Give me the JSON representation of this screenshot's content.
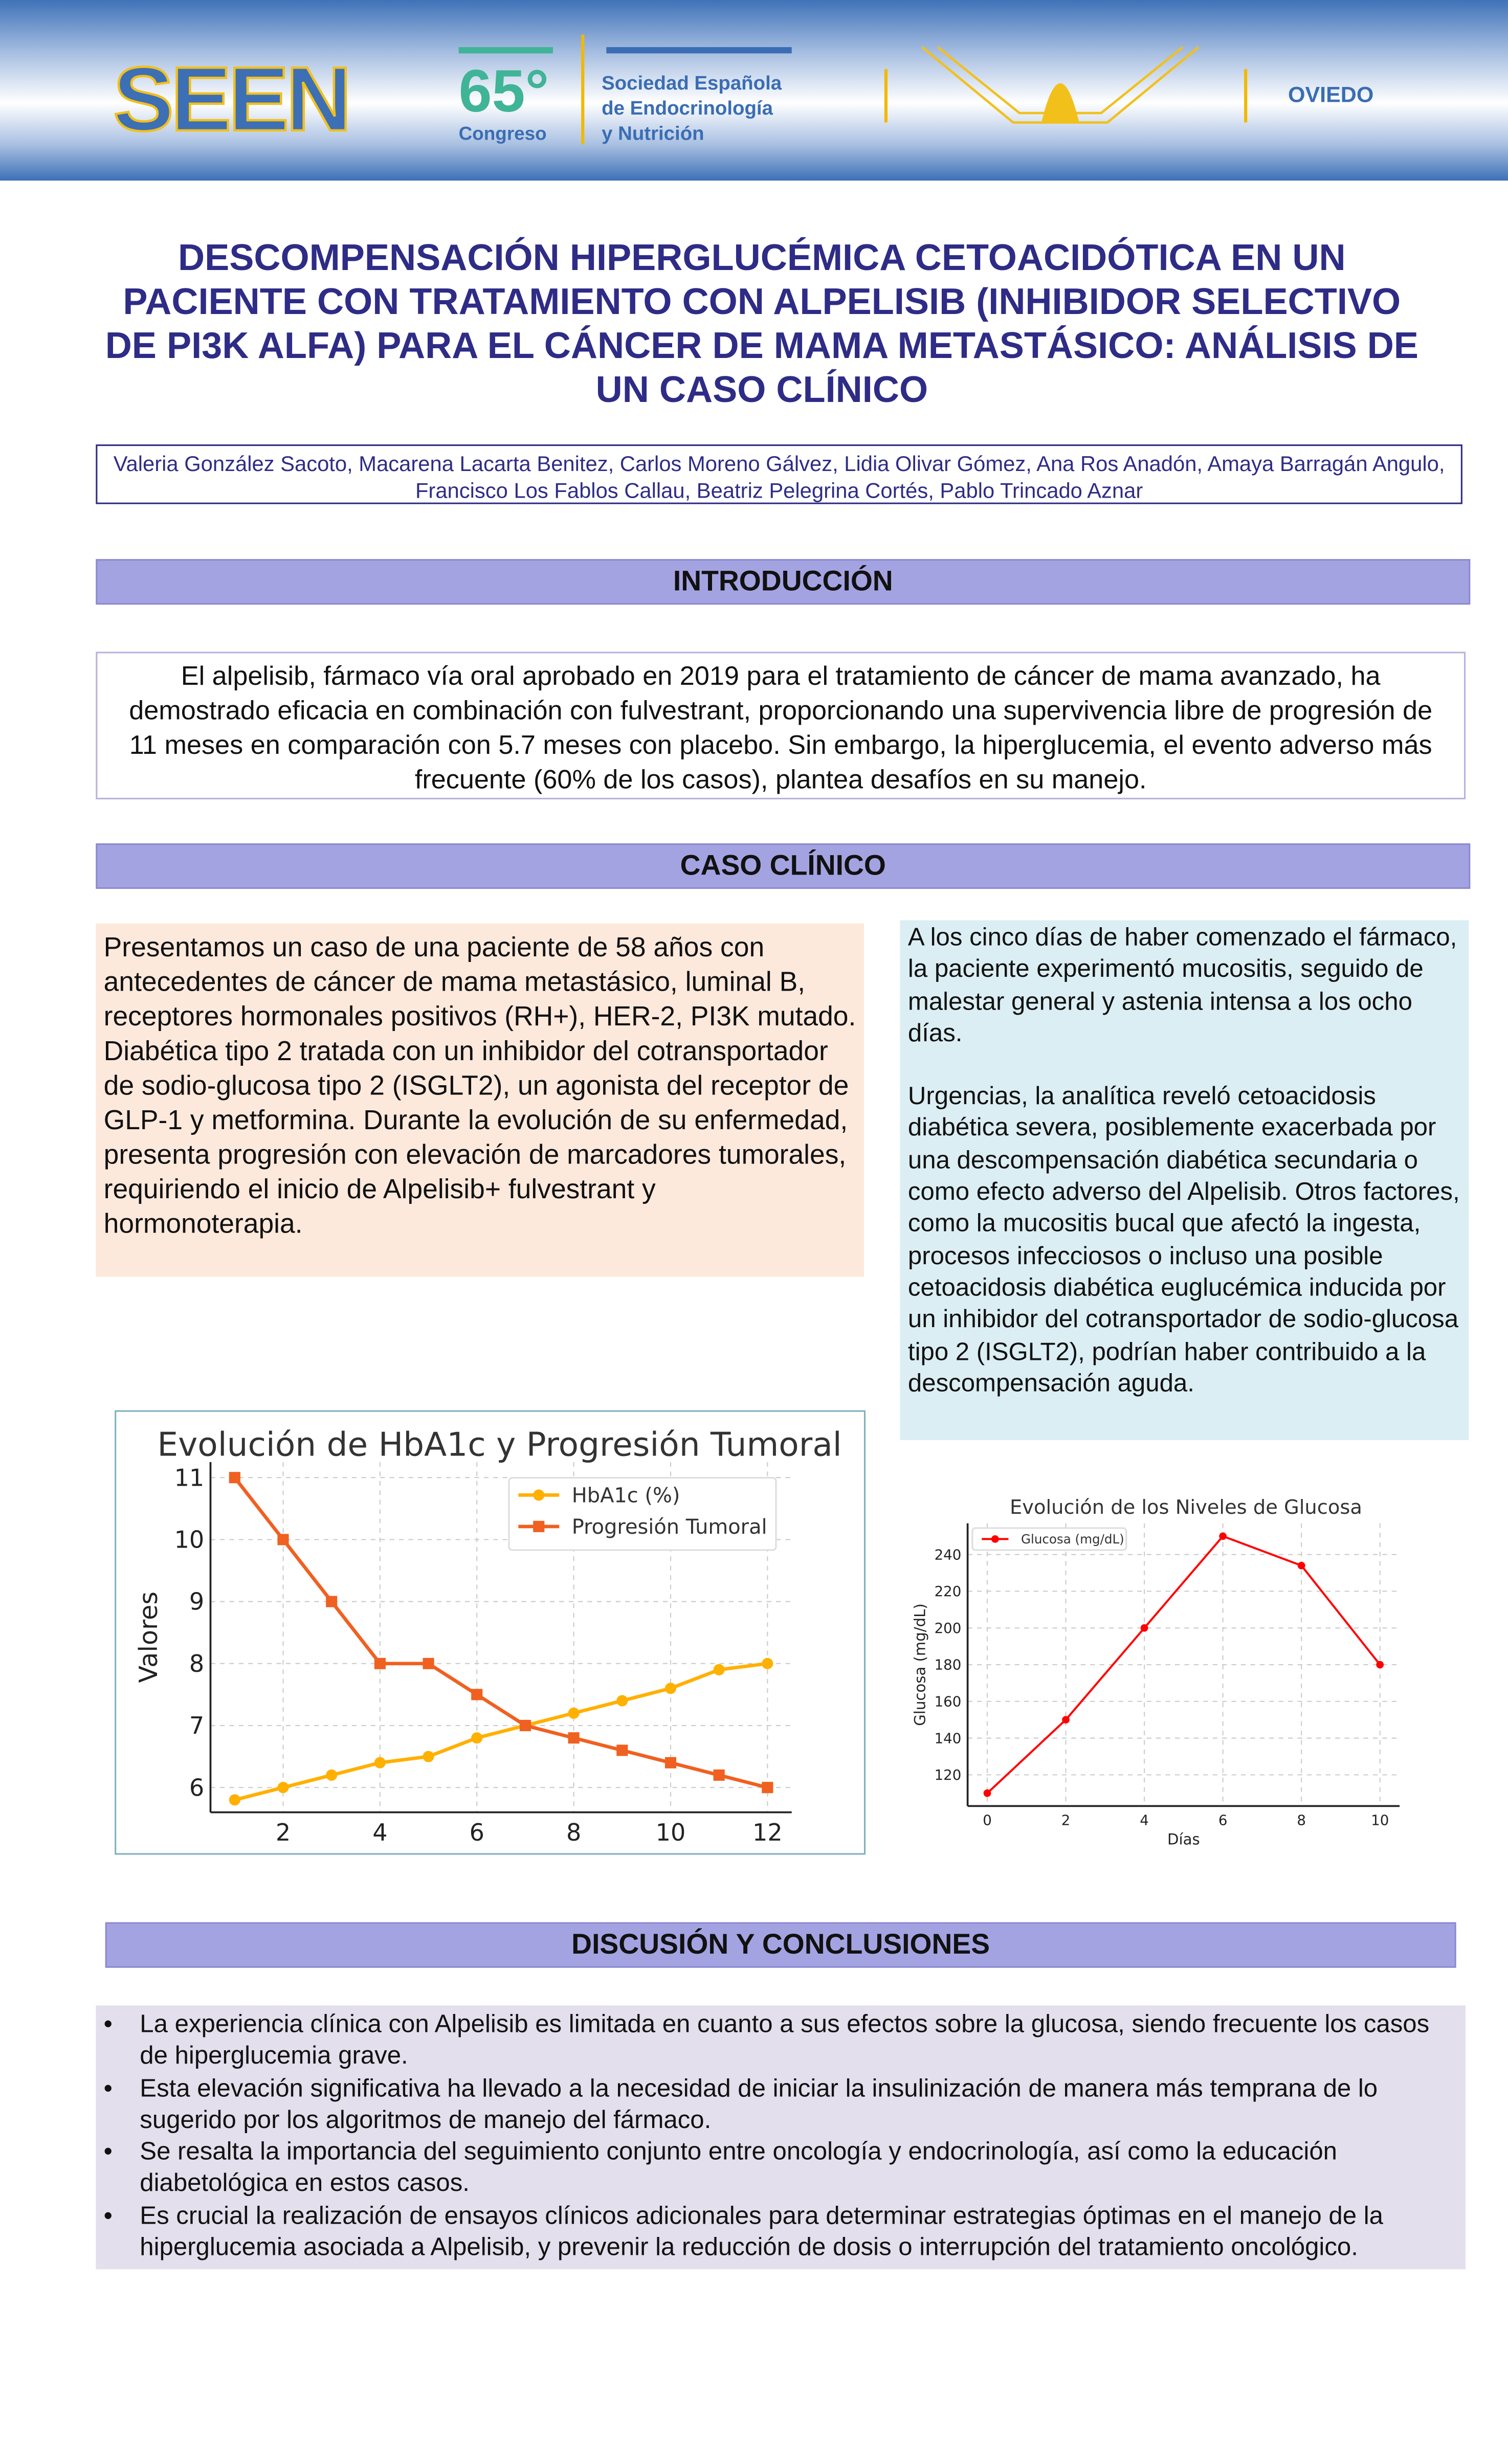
{
  "header": {
    "logo_text": "SEEN",
    "congress_number": "65°",
    "congress_label": "Congreso",
    "society": [
      "Sociedad Española",
      "de Endocrinología",
      "y Nutrición"
    ],
    "city": "OVIEDO"
  },
  "title": "DESCOMPENSACIÓN HIPERGLUCÉMICA CETOACIDÓTICA EN UN PACIENTE CON TRATAMIENTO CON ALPELISIB (INHIBIDOR SELECTIVO DE PI3K ALFA) PARA EL CÁNCER DE MAMA METASTÁSICO: ANÁLISIS DE UN CASO CLÍNICO",
  "authors": "Valeria González Sacoto, Macarena Lacarta Benitez, Carlos Moreno Gálvez, Lidia Olivar Gómez, Ana Ros Anadón, Amaya Barragán Angulo, Francisco Los Fablos Callau, Beatriz Pelegrina Cortés, Pablo Trincado Aznar",
  "sections": {
    "intro_heading": "INTRODUCCIÓN",
    "intro_text": "El alpelisib, fármaco vía oral aprobado en 2019 para el tratamiento de cáncer de mama avanzado, ha demostrado eficacia en combinación con fulvestrant, proporcionando una supervivencia libre de progresión de 11 meses en comparación con 5.7 meses con placebo. Sin embargo, la hiperglucemia, el evento adverso más frecuente (60% de los casos), plantea desafíos en su manejo.",
    "case_heading": "CASO CLÍNICO",
    "case_left": "Presentamos un caso de una paciente de 58 años con antecedentes de cáncer de mama metastásico, luminal B, receptores hormonales positivos (RH+), HER-2, PI3K mutado. Diabética tipo 2 tratada con un inhibidor del cotransportador de sodio-glucosa tipo 2 (ISGLT2), un agonista del receptor de GLP-1 y metformina. Durante la evolución de su enfermedad, presenta progresión con elevación de marcadores tumorales, requiriendo el inicio de Alpelisib+ fulvestrant y hormonoterapia.",
    "case_right_p1": "A los cinco días de haber comenzado el fármaco, la paciente experimentó mucositis, seguido de malestar general y astenia intensa a los ocho días.",
    "case_right_p2": "Urgencias, la analítica reveló cetoacidosis diabética severa, posiblemente exacerbada por una descompensación diabética secundaria o como efecto adverso del Alpelisib. Otros factores, como la mucositis bucal que afectó la ingesta, procesos infecciosos o incluso una posible cetoacidosis diabética euglucémica inducida por un inhibidor del cotransportador de sodio-glucosa tipo 2 (ISGLT2), podrían haber contribuido a la descompensación aguda.",
    "disc_heading": "DISCUSIÓN Y CONCLUSIONES",
    "disc_items": [
      "La experiencia clínica con Alpelisib es limitada en cuanto a sus efectos sobre la glucosa, siendo frecuente los casos de hiperglucemia grave.",
      "Esta elevación significativa ha llevado a la necesidad de iniciar la insulinización de manera más temprana de lo sugerido por los algoritmos de manejo del fármaco.",
      "Se resalta la importancia del seguimiento conjunto entre oncología y endocrinología, así como la educación diabetológica en estos casos.",
      "Es crucial la realización de ensayos clínicos adicionales para determinar estrategias óptimas en el manejo de la hiperglucemia asociada a Alpelisib, y prevenir la reducción de dosis o interrupción del tratamiento oncológico."
    ]
  },
  "chart_data": [
    {
      "type": "line",
      "title": "Evolución de HbA1c y Progresión Tumoral",
      "xlabel": "",
      "ylabel": "Valores",
      "x": [
        1,
        2,
        3,
        4,
        5,
        6,
        7,
        8,
        9,
        10,
        11,
        12
      ],
      "xticks": [
        2,
        4,
        6,
        8,
        10,
        12
      ],
      "yticks": [
        6,
        7,
        8,
        9,
        10,
        11
      ],
      "xlim": [
        0.5,
        12.5
      ],
      "ylim": [
        5.6,
        11.25
      ],
      "grid": true,
      "legend": "top-right",
      "series": [
        {
          "name": "HbA1c (%)",
          "color": "#ffb000",
          "marker": "circle",
          "values": [
            5.8,
            6.0,
            6.2,
            6.4,
            6.5,
            6.8,
            7.0,
            7.2,
            7.4,
            7.6,
            7.9,
            8.0
          ]
        },
        {
          "name": "Progresión Tumoral",
          "color": "#f06020",
          "marker": "square",
          "values": [
            11,
            10,
            9,
            8,
            8,
            7.5,
            7,
            6.8,
            6.6,
            6.4,
            6.2,
            6.0
          ]
        }
      ]
    },
    {
      "type": "line",
      "title": "Evolución de los Niveles de Glucosa",
      "xlabel": "Días",
      "ylabel": "Glucosa (mg/dL)",
      "x": [
        0,
        2,
        4,
        6,
        8,
        10
      ],
      "xticks": [
        0,
        2,
        4,
        6,
        8,
        10
      ],
      "yticks": [
        120,
        140,
        160,
        180,
        200,
        220,
        240
      ],
      "xlim": [
        -0.5,
        10.5
      ],
      "ylim": [
        103,
        257
      ],
      "grid": true,
      "legend": "top-left",
      "series": [
        {
          "name": "Glucosa (mg/dL)",
          "color": "#ff0000",
          "marker": "circle",
          "values": [
            110,
            150,
            200,
            250,
            234,
            180
          ]
        }
      ]
    }
  ]
}
